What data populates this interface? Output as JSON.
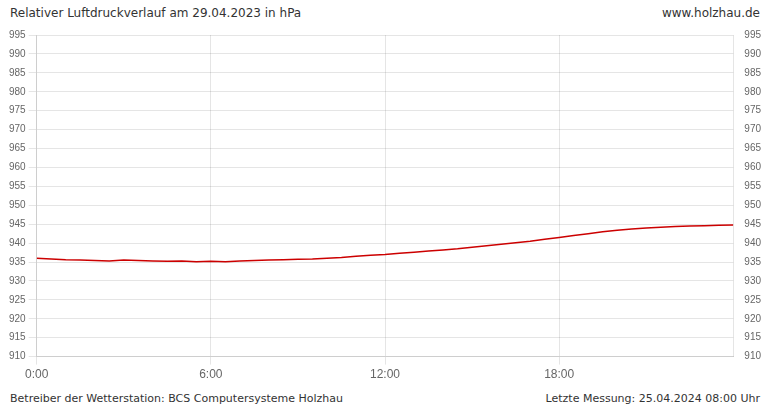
{
  "chart_data": {
    "type": "line",
    "title": "Relativer Luftdruckverlauf am 29.04.2023 in hPa",
    "annotations": [
      "www.holzhau.de",
      "Betreiber der Wetterstation: BCS Computersysteme Holzhau",
      "Letzte Messung: 25.04.2024 08:00 Uhr"
    ],
    "x": [
      0.0,
      0.5,
      1.0,
      1.5,
      2.0,
      2.5,
      3.0,
      3.5,
      4.0,
      4.5,
      5.0,
      5.5,
      6.0,
      6.5,
      7.0,
      7.5,
      8.0,
      8.5,
      9.0,
      9.5,
      10.0,
      10.5,
      11.0,
      11.5,
      12.0,
      12.5,
      13.0,
      13.5,
      14.0,
      14.5,
      15.0,
      15.5,
      16.0,
      16.5,
      17.0,
      17.5,
      18.0,
      18.5,
      19.0,
      19.5,
      20.0,
      20.5,
      21.0,
      21.5,
      22.0,
      22.5,
      23.0,
      23.5,
      24.0
    ],
    "values": [
      936.0,
      935.8,
      935.6,
      935.5,
      935.4,
      935.3,
      935.5,
      935.4,
      935.3,
      935.2,
      935.3,
      935.1,
      935.2,
      935.1,
      935.3,
      935.4,
      935.5,
      935.6,
      935.7,
      935.8,
      936.0,
      936.2,
      936.5,
      936.8,
      937.0,
      937.3,
      937.6,
      937.9,
      938.2,
      938.5,
      938.9,
      939.3,
      939.7,
      940.1,
      940.5,
      941.0,
      941.5,
      942.0,
      942.5,
      943.0,
      943.4,
      943.7,
      944.0,
      944.2,
      944.4,
      944.5,
      944.6,
      944.7,
      944.8
    ],
    "color": "#cc0000",
    "xlim": [
      0,
      24
    ],
    "xticks": [
      {
        "value": 0,
        "label": "0:00"
      },
      {
        "value": 6,
        "label": "6:00"
      },
      {
        "value": 12,
        "label": "12:00"
      },
      {
        "value": 18,
        "label": "18:00"
      }
    ],
    "ylim": [
      910,
      995
    ],
    "yticks": [
      910,
      915,
      920,
      925,
      930,
      935,
      940,
      945,
      950,
      955,
      960,
      965,
      970,
      975,
      980,
      985,
      990,
      995
    ],
    "y2lim": [
      910,
      995
    ],
    "y2ticks": [
      910,
      915,
      920,
      925,
      930,
      935,
      940,
      945,
      950,
      955,
      960,
      965,
      970,
      975,
      980,
      985,
      990,
      995
    ],
    "grid": true
  }
}
